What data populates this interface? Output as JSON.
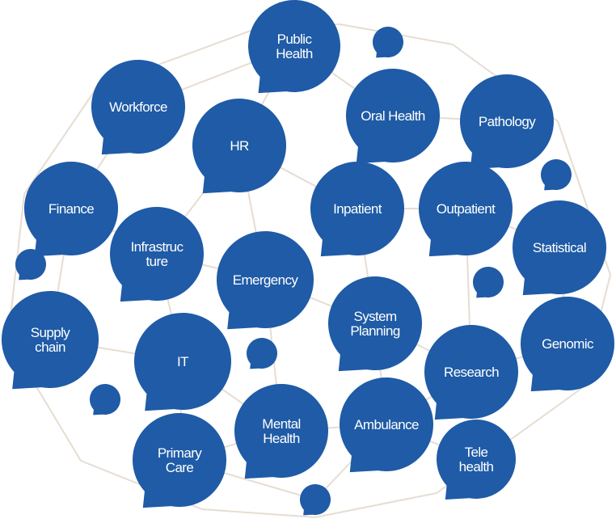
{
  "nodes": [
    {
      "id": "public-health",
      "lines": [
        "Public",
        "Health"
      ]
    },
    {
      "id": "workforce",
      "lines": [
        "Workforce"
      ]
    },
    {
      "id": "hr",
      "lines": [
        "HR"
      ]
    },
    {
      "id": "oral-health",
      "lines": [
        "Oral Health"
      ]
    },
    {
      "id": "pathology",
      "lines": [
        "Pathology"
      ]
    },
    {
      "id": "finance",
      "lines": [
        "Finance"
      ]
    },
    {
      "id": "inpatient",
      "lines": [
        "Inpatient"
      ]
    },
    {
      "id": "outpatient",
      "lines": [
        "Outpatient"
      ]
    },
    {
      "id": "infrastructure",
      "lines": [
        "Infrastruc",
        "ture"
      ]
    },
    {
      "id": "statistical",
      "lines": [
        "Statistical"
      ]
    },
    {
      "id": "emergency",
      "lines": [
        "Emergency"
      ]
    },
    {
      "id": "supply-chain",
      "lines": [
        "Supply",
        "chain"
      ]
    },
    {
      "id": "system-planning",
      "lines": [
        "System",
        "Planning"
      ]
    },
    {
      "id": "genomic",
      "lines": [
        "Genomic"
      ]
    },
    {
      "id": "it",
      "lines": [
        "IT"
      ]
    },
    {
      "id": "research",
      "lines": [
        "Research"
      ]
    },
    {
      "id": "mental-health",
      "lines": [
        "Mental",
        "Health"
      ]
    },
    {
      "id": "ambulance",
      "lines": [
        "Ambulance"
      ]
    },
    {
      "id": "primary-care",
      "lines": [
        "Primary",
        "Care"
      ]
    },
    {
      "id": "telehealth",
      "lines": [
        "Tele",
        "health"
      ]
    }
  ],
  "colors": {
    "bubble": "#1f5ba6",
    "label": "#ffffff",
    "edge": "#e6ddd3"
  }
}
